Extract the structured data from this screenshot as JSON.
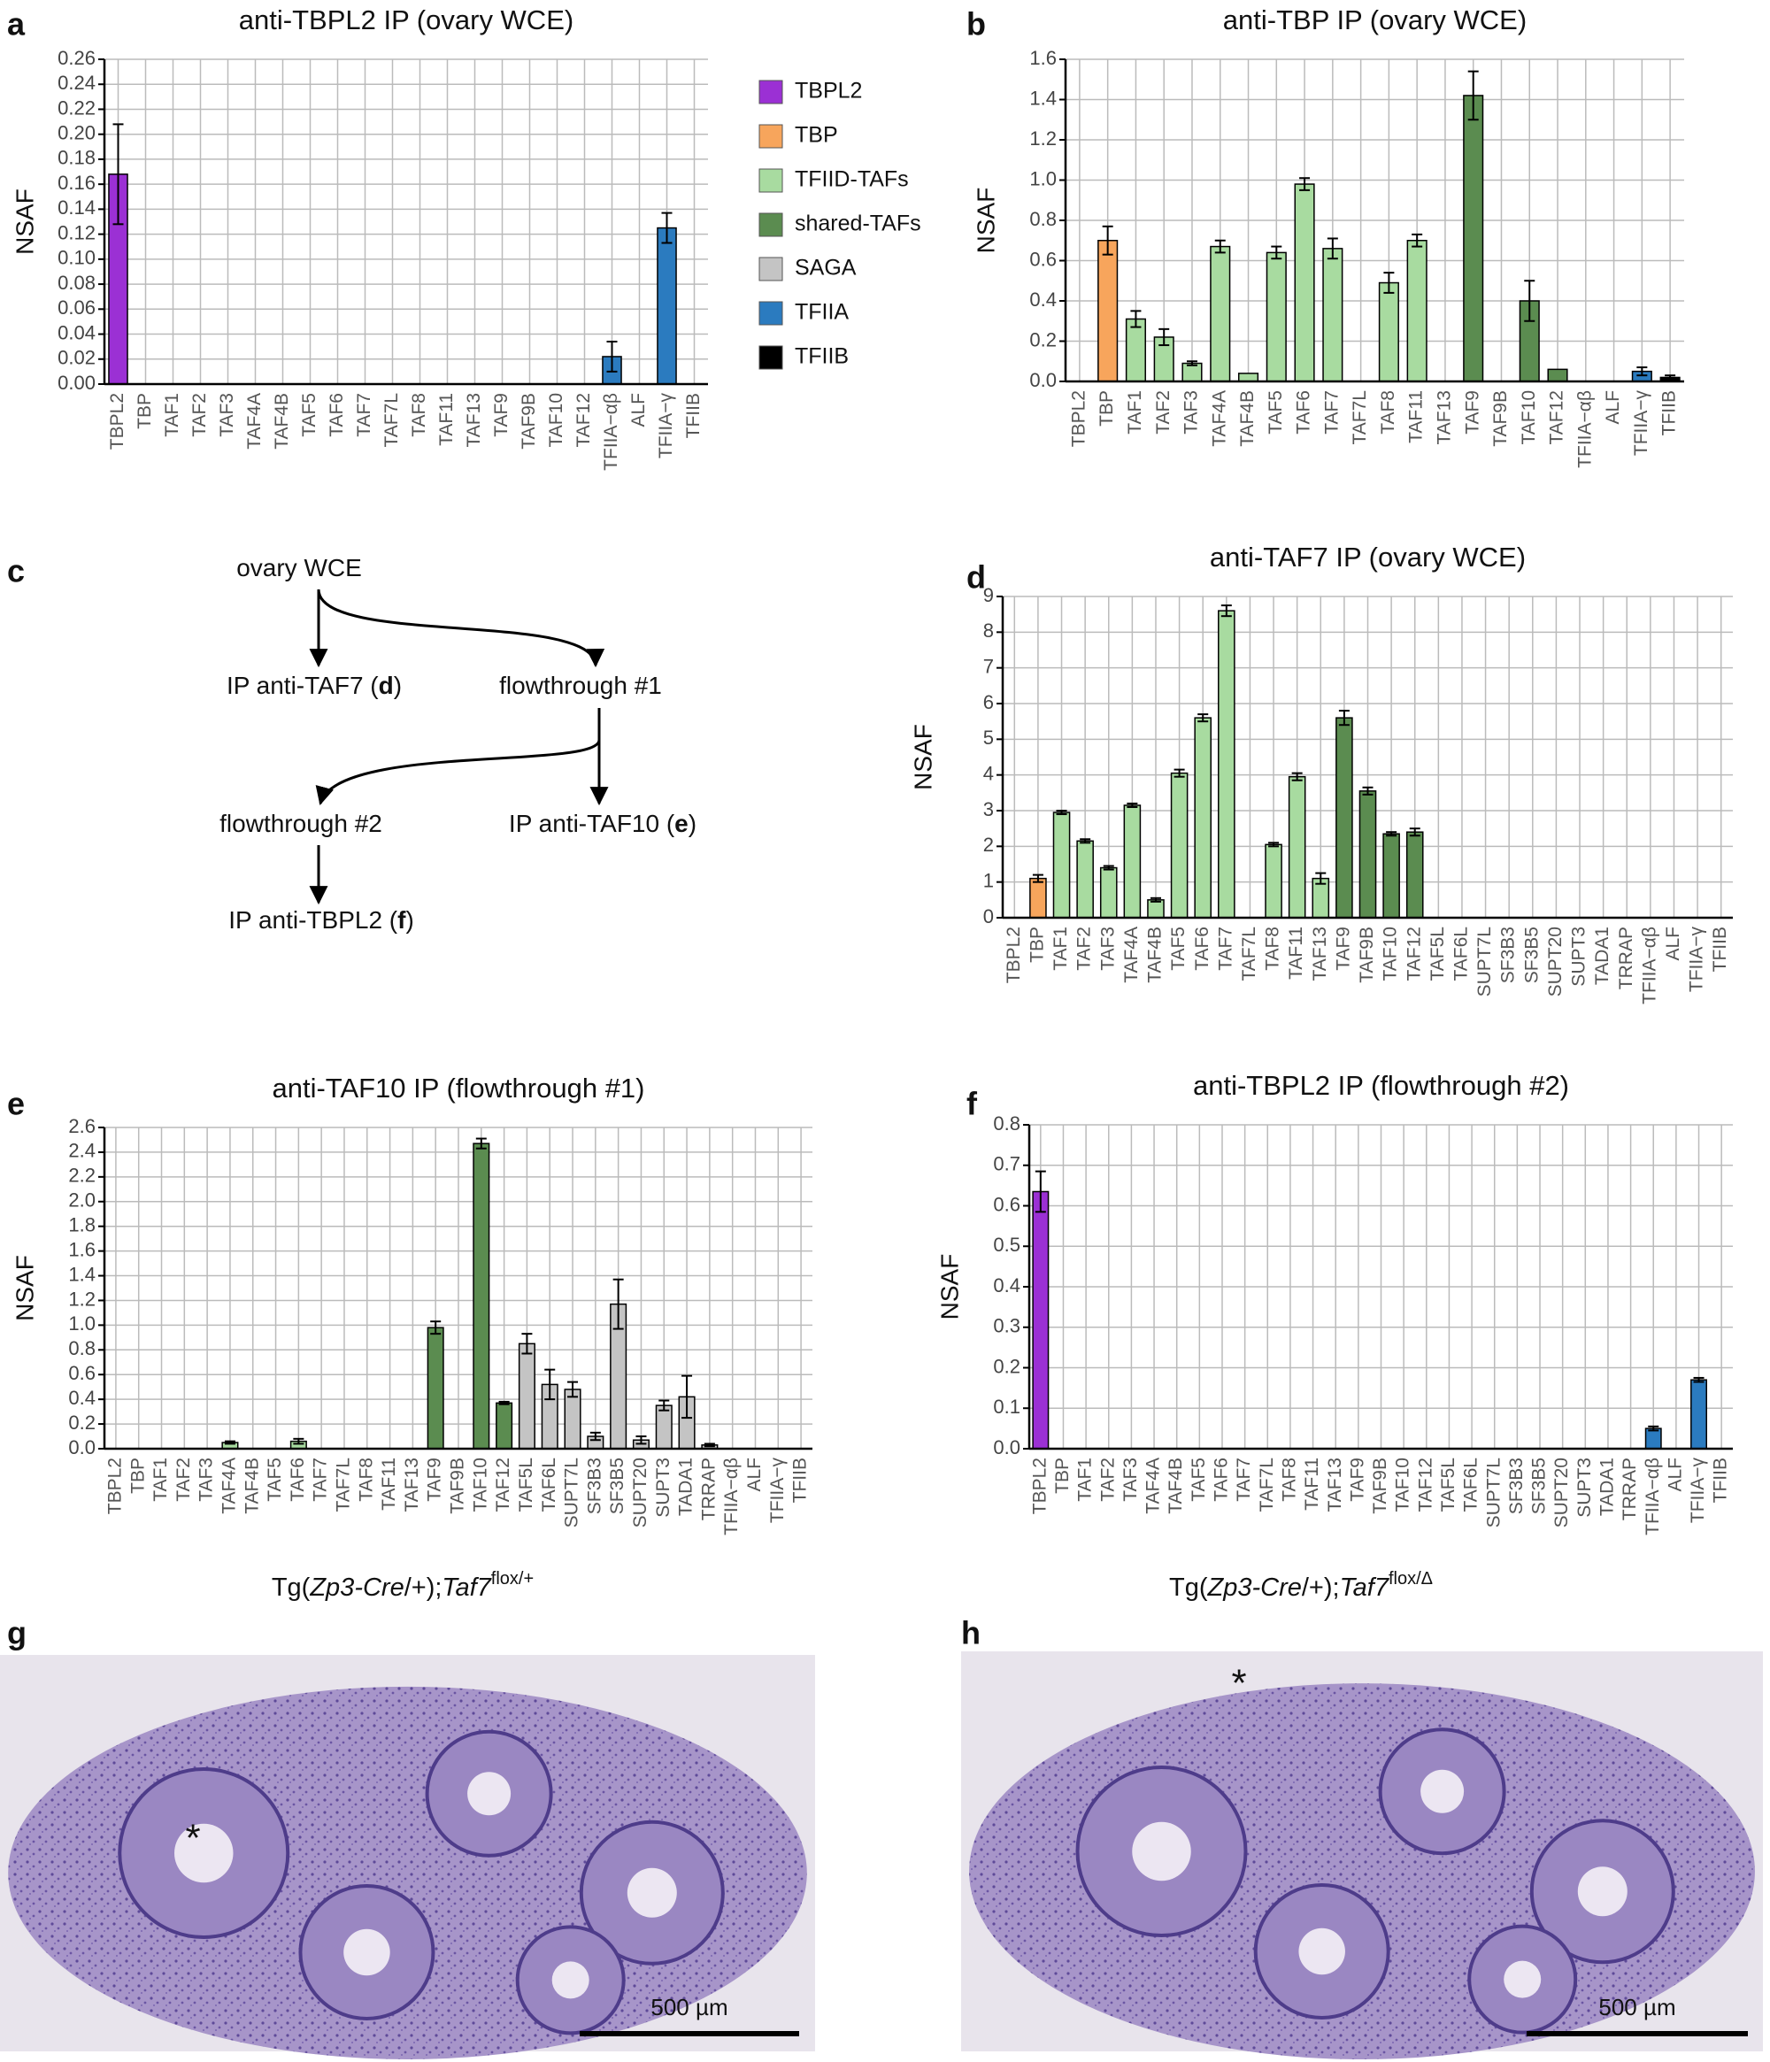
{
  "chart_data": [
    {
      "type": "bar",
      "panel": "a",
      "title": "anti-TBPL2 IP (ovary WCE)",
      "ylabel": "NSAF",
      "categories": [
        "TBPL2",
        "TBP",
        "TAF1",
        "TAF2",
        "TAF3",
        "TAF4A",
        "TAF4B",
        "TAF5",
        "TAF6",
        "TAF7",
        "TAF7L",
        "TAF8",
        "TAF11",
        "TAF13",
        "TAF9",
        "TAF9B",
        "TAF10",
        "TAF12",
        "TFIIA−αβ",
        "ALF",
        "TFIIA−γ",
        "TFIIB"
      ],
      "values": [
        0.168,
        0,
        0,
        0,
        0,
        0,
        0,
        0,
        0,
        0,
        0,
        0,
        0,
        0,
        0,
        0,
        0,
        0,
        0.022,
        0,
        0.125,
        0
      ],
      "errors": [
        0.04,
        0,
        0,
        0,
        0,
        0,
        0,
        0,
        0,
        0,
        0,
        0,
        0,
        0,
        0,
        0,
        0,
        0,
        0.012,
        0,
        0.012,
        0
      ],
      "colors": [
        "#9b30d4",
        "#f7a55c",
        "#a8dba0",
        "#a8dba0",
        "#a8dba0",
        "#a8dba0",
        "#a8dba0",
        "#a8dba0",
        "#a8dba0",
        "#a8dba0",
        "#a8dba0",
        "#a8dba0",
        "#a8dba0",
        "#a8dba0",
        "#5b8c50",
        "#5b8c50",
        "#5b8c50",
        "#5b8c50",
        "#2b7bbf",
        "#2b7bbf",
        "#2b7bbf",
        "#000000"
      ],
      "ylim": [
        0,
        0.26
      ],
      "yticks": [
        {
          "value": 0,
          "label": "0.00"
        },
        {
          "value": 0.02,
          "label": "0.02"
        },
        {
          "value": 0.04,
          "label": "0.04"
        },
        {
          "value": 0.06,
          "label": "0.06"
        },
        {
          "value": 0.08,
          "label": "0.08"
        },
        {
          "value": 0.1,
          "label": "0.10"
        },
        {
          "value": 0.12,
          "label": "0.12"
        },
        {
          "value": 0.14,
          "label": "0.14"
        },
        {
          "value": 0.16,
          "label": "0.16"
        },
        {
          "value": 0.18,
          "label": "0.18"
        },
        {
          "value": 0.2,
          "label": "0.20"
        },
        {
          "value": 0.22,
          "label": "0.22"
        },
        {
          "value": 0.24,
          "label": "0.24"
        },
        {
          "value": 0.26,
          "label": "0.26"
        }
      ],
      "grid": true,
      "legend": [
        {
          "name": "TBPL2",
          "color": "#9b30d4"
        },
        {
          "name": "TBP",
          "color": "#f7a55c"
        },
        {
          "name": "TFIID-TAFs",
          "color": "#a8dba0"
        },
        {
          "name": "shared-TAFs",
          "color": "#5b8c50"
        },
        {
          "name": "SAGA",
          "color": "#c4c4c4"
        },
        {
          "name": "TFIIA",
          "color": "#2b7bbf"
        },
        {
          "name": "TFIIB",
          "color": "#000000"
        }
      ]
    },
    {
      "type": "bar",
      "panel": "b",
      "title": "anti-TBP IP (ovary WCE)",
      "ylabel": "NSAF",
      "categories": [
        "TBPL2",
        "TBP",
        "TAF1",
        "TAF2",
        "TAF3",
        "TAF4A",
        "TAF4B",
        "TAF5",
        "TAF6",
        "TAF7",
        "TAF7L",
        "TAF8",
        "TAF11",
        "TAF13",
        "TAF9",
        "TAF9B",
        "TAF10",
        "TAF12",
        "TFIIA−αβ",
        "ALF",
        "TFIIA−γ",
        "TFIIB"
      ],
      "values": [
        0,
        0.7,
        0.31,
        0.22,
        0.09,
        0.67,
        0.04,
        0.64,
        0.98,
        0.66,
        0,
        0.49,
        0.7,
        0,
        1.42,
        0,
        0.4,
        0.06,
        0,
        0,
        0.05,
        0.02
      ],
      "errors": [
        0,
        0.07,
        0.04,
        0.04,
        0.01,
        0.03,
        0,
        0.03,
        0.03,
        0.05,
        0,
        0.05,
        0.03,
        0,
        0.12,
        0,
        0.1,
        0,
        0,
        0,
        0.02,
        0.01
      ],
      "colors": [
        "#9b30d4",
        "#f7a55c",
        "#a8dba0",
        "#a8dba0",
        "#a8dba0",
        "#a8dba0",
        "#a8dba0",
        "#a8dba0",
        "#a8dba0",
        "#a8dba0",
        "#a8dba0",
        "#a8dba0",
        "#a8dba0",
        "#a8dba0",
        "#5b8c50",
        "#5b8c50",
        "#5b8c50",
        "#5b8c50",
        "#2b7bbf",
        "#2b7bbf",
        "#2b7bbf",
        "#000000"
      ],
      "ylim": [
        0,
        1.6
      ],
      "yticks": [
        {
          "value": 0,
          "label": "0.0"
        },
        {
          "value": 0.2,
          "label": "0.2"
        },
        {
          "value": 0.4,
          "label": "0.4"
        },
        {
          "value": 0.6,
          "label": "0.6"
        },
        {
          "value": 0.8,
          "label": "0.8"
        },
        {
          "value": 1,
          "label": "1.0"
        },
        {
          "value": 1.2,
          "label": "1.2"
        },
        {
          "value": 1.4,
          "label": "1.4"
        },
        {
          "value": 1.6,
          "label": "1.6"
        }
      ],
      "grid": true
    },
    {
      "type": "bar",
      "panel": "d",
      "title": "anti-TAF7 IP (ovary WCE)",
      "ylabel": "NSAF",
      "categories": [
        "TBPL2",
        "TBP",
        "TAF1",
        "TAF2",
        "TAF3",
        "TAF4A",
        "TAF4B",
        "TAF5",
        "TAF6",
        "TAF7",
        "TAF7L",
        "TAF8",
        "TAF11",
        "TAF13",
        "TAF9",
        "TAF9B",
        "TAF10",
        "TAF12",
        "TAF5L",
        "TAF6L",
        "SUPT7L",
        "SF3B3",
        "SF3B5",
        "SUPT20",
        "SUPT3",
        "TADA1",
        "TRRAP",
        "TFIIA−αβ",
        "ALF",
        "TFIIA−γ",
        "TFIIB"
      ],
      "values": [
        0,
        1.1,
        2.95,
        2.15,
        1.4,
        3.15,
        0.5,
        4.05,
        5.6,
        8.6,
        0,
        2.05,
        3.95,
        1.1,
        5.6,
        3.55,
        2.35,
        2.4,
        0,
        0,
        0,
        0,
        0,
        0,
        0,
        0,
        0,
        0,
        0,
        0,
        0
      ],
      "errors": [
        0,
        0.1,
        0.05,
        0.05,
        0.05,
        0.05,
        0.05,
        0.1,
        0.1,
        0.15,
        0,
        0.05,
        0.1,
        0.15,
        0.2,
        0.1,
        0.05,
        0.1,
        0,
        0,
        0,
        0,
        0,
        0,
        0,
        0,
        0,
        0,
        0,
        0,
        0
      ],
      "colors": [
        "#9b30d4",
        "#f7a55c",
        "#a8dba0",
        "#a8dba0",
        "#a8dba0",
        "#a8dba0",
        "#a8dba0",
        "#a8dba0",
        "#a8dba0",
        "#a8dba0",
        "#a8dba0",
        "#a8dba0",
        "#a8dba0",
        "#a8dba0",
        "#5b8c50",
        "#5b8c50",
        "#5b8c50",
        "#5b8c50",
        "#c4c4c4",
        "#c4c4c4",
        "#c4c4c4",
        "#c4c4c4",
        "#c4c4c4",
        "#c4c4c4",
        "#c4c4c4",
        "#c4c4c4",
        "#c4c4c4",
        "#2b7bbf",
        "#2b7bbf",
        "#2b7bbf",
        "#000000"
      ],
      "ylim": [
        0,
        9
      ],
      "yticks": [
        0,
        1,
        2,
        3,
        4,
        5,
        6,
        7,
        8,
        9
      ],
      "grid": true
    },
    {
      "type": "bar",
      "panel": "e",
      "title": "anti-TAF10 IP (flowthrough #1)",
      "ylabel": "NSAF",
      "categories": [
        "TBPL2",
        "TBP",
        "TAF1",
        "TAF2",
        "TAF3",
        "TAF4A",
        "TAF4B",
        "TAF5",
        "TAF6",
        "TAF7",
        "TAF7L",
        "TAF8",
        "TAF11",
        "TAF13",
        "TAF9",
        "TAF9B",
        "TAF10",
        "TAF12",
        "TAF5L",
        "TAF6L",
        "SUPT7L",
        "SF3B3",
        "SF3B5",
        "SUPT20",
        "SUPT3",
        "TADA1",
        "TRRAP",
        "TFIIA−αβ",
        "ALF",
        "TFIIA−γ",
        "TFIIB"
      ],
      "values": [
        0,
        0,
        0,
        0,
        0,
        0.05,
        0,
        0,
        0.06,
        0,
        0,
        0,
        0,
        0,
        0.98,
        0,
        2.47,
        0.37,
        0.85,
        0.52,
        0.48,
        0.1,
        1.17,
        0.07,
        0.35,
        0.42,
        0.03,
        0,
        0,
        0,
        0
      ],
      "errors": [
        0,
        0,
        0,
        0,
        0,
        0.01,
        0,
        0,
        0.02,
        0,
        0,
        0,
        0,
        0,
        0.05,
        0,
        0.04,
        0.01,
        0.08,
        0.12,
        0.06,
        0.03,
        0.2,
        0.03,
        0.04,
        0.17,
        0.01,
        0,
        0,
        0,
        0
      ],
      "colors": [
        "#9b30d4",
        "#f7a55c",
        "#a8dba0",
        "#a8dba0",
        "#a8dba0",
        "#a8dba0",
        "#a8dba0",
        "#a8dba0",
        "#a8dba0",
        "#a8dba0",
        "#a8dba0",
        "#a8dba0",
        "#a8dba0",
        "#a8dba0",
        "#5b8c50",
        "#5b8c50",
        "#5b8c50",
        "#5b8c50",
        "#c4c4c4",
        "#c4c4c4",
        "#c4c4c4",
        "#c4c4c4",
        "#c4c4c4",
        "#c4c4c4",
        "#c4c4c4",
        "#c4c4c4",
        "#c4c4c4",
        "#2b7bbf",
        "#2b7bbf",
        "#2b7bbf",
        "#000000"
      ],
      "ylim": [
        0,
        2.6
      ],
      "yticks": [
        {
          "value": 0,
          "label": "0.0"
        },
        {
          "value": 0.2,
          "label": "0.2"
        },
        {
          "value": 0.4,
          "label": "0.4"
        },
        {
          "value": 0.6,
          "label": "0.6"
        },
        {
          "value": 0.8,
          "label": "0.8"
        },
        {
          "value": 1,
          "label": "1.0"
        },
        {
          "value": 1.2,
          "label": "1.2"
        },
        {
          "value": 1.4,
          "label": "1.4"
        },
        {
          "value": 1.6,
          "label": "1.6"
        },
        {
          "value": 1.8,
          "label": "1.8"
        },
        {
          "value": 2,
          "label": "2.0"
        },
        {
          "value": 2.2,
          "label": "2.2"
        },
        {
          "value": 2.4,
          "label": "2.4"
        },
        {
          "value": 2.6,
          "label": "2.6"
        }
      ],
      "grid": true
    },
    {
      "type": "bar",
      "panel": "f",
      "title": "anti-TBPL2 IP (flowthrough #2)",
      "ylabel": "NSAF",
      "categories": [
        "TBPL2",
        "TBP",
        "TAF1",
        "TAF2",
        "TAF3",
        "TAF4A",
        "TAF4B",
        "TAF5",
        "TAF6",
        "TAF7",
        "TAF7L",
        "TAF8",
        "TAF11",
        "TAF13",
        "TAF9",
        "TAF9B",
        "TAF10",
        "TAF12",
        "TAF5L",
        "TAF6L",
        "SUPT7L",
        "SF3B3",
        "SF3B5",
        "SUPT20",
        "SUPT3",
        "TADA1",
        "TRRAP",
        "TFIIA−αβ",
        "ALF",
        "TFIIA−γ",
        "TFIIB"
      ],
      "values": [
        0.635,
        0,
        0,
        0,
        0,
        0,
        0,
        0,
        0,
        0,
        0,
        0,
        0,
        0,
        0,
        0,
        0,
        0,
        0,
        0,
        0,
        0,
        0,
        0,
        0,
        0,
        0,
        0.05,
        0,
        0.17,
        0
      ],
      "errors": [
        0.05,
        0,
        0,
        0,
        0,
        0,
        0,
        0,
        0,
        0,
        0,
        0,
        0,
        0,
        0,
        0,
        0,
        0,
        0,
        0,
        0,
        0,
        0,
        0,
        0,
        0,
        0,
        0.005,
        0,
        0.005,
        0
      ],
      "colors": [
        "#9b30d4",
        "#f7a55c",
        "#a8dba0",
        "#a8dba0",
        "#a8dba0",
        "#a8dba0",
        "#a8dba0",
        "#a8dba0",
        "#a8dba0",
        "#a8dba0",
        "#a8dba0",
        "#a8dba0",
        "#a8dba0",
        "#a8dba0",
        "#5b8c50",
        "#5b8c50",
        "#5b8c50",
        "#5b8c50",
        "#c4c4c4",
        "#c4c4c4",
        "#c4c4c4",
        "#c4c4c4",
        "#c4c4c4",
        "#c4c4c4",
        "#c4c4c4",
        "#c4c4c4",
        "#c4c4c4",
        "#2b7bbf",
        "#2b7bbf",
        "#2b7bbf",
        "#000000"
      ],
      "ylim": [
        0,
        0.8
      ],
      "yticks": [
        {
          "value": 0,
          "label": "0.0"
        },
        {
          "value": 0.1,
          "label": "0.1"
        },
        {
          "value": 0.2,
          "label": "0.2"
        },
        {
          "value": 0.3,
          "label": "0.3"
        },
        {
          "value": 0.4,
          "label": "0.4"
        },
        {
          "value": 0.5,
          "label": "0.5"
        },
        {
          "value": 0.6,
          "label": "0.6"
        },
        {
          "value": 0.7,
          "label": "0.7"
        },
        {
          "value": 0.8,
          "label": "0.8"
        }
      ],
      "grid": true
    }
  ],
  "diagram": {
    "panel": "c",
    "nodes": [
      {
        "parts": [
          "ovary WCE"
        ]
      },
      {
        "parts": [
          "IP anti-TAF7 (",
          "d",
          ")"
        ]
      },
      {
        "parts": [
          "flowthrough #1"
        ]
      },
      {
        "parts": [
          "flowthrough #2"
        ]
      },
      {
        "parts": [
          "IP anti-TAF10 (",
          "e",
          ")"
        ]
      },
      {
        "parts": [
          "IP anti-TBPL2 (",
          "f",
          ")"
        ]
      }
    ]
  },
  "histology": [
    {
      "panel": "g",
      "title_parts": [
        "Tg(",
        "Zp3-Cre",
        "/+);",
        "Taf7",
        "flox/+"
      ],
      "marker": "*",
      "scale_bar": "500 µm"
    },
    {
      "panel": "h",
      "title_parts": [
        "Tg(",
        "Zp3-Cre",
        "/+);",
        "Taf7",
        "flox/Δ"
      ],
      "marker": "*",
      "scale_bar": "500 µm"
    }
  ]
}
